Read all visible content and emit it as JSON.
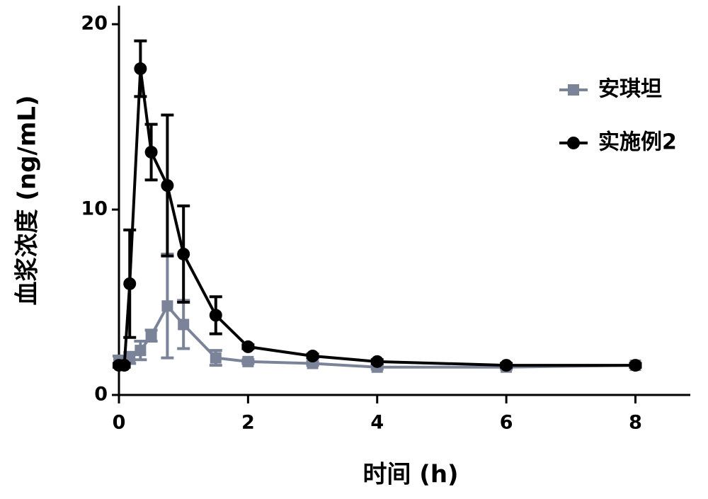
{
  "chart_data": {
    "type": "line",
    "x_label": "时间 (h)",
    "y_label": "血浆浓度 (ng/mL)",
    "x": [
      0,
      0.083,
      0.167,
      0.333,
      0.5,
      0.75,
      1,
      1.5,
      2,
      3,
      4,
      6,
      8
    ],
    "series": [
      {
        "name": "安琪坦",
        "color": "#7a8397",
        "marker": "square",
        "values": [
          1.8,
          1.8,
          2.0,
          2.4,
          3.2,
          4.8,
          3.8,
          2.0,
          1.8,
          1.7,
          1.5,
          1.5,
          1.6
        ],
        "errors": [
          0.3,
          0.2,
          0.3,
          0.5,
          0.3,
          2.8,
          1.3,
          0.4,
          0.1,
          0.1,
          0.1,
          0.1,
          0.1
        ]
      },
      {
        "name": "实施例2",
        "color": "#000000",
        "marker": "circle",
        "values": [
          1.6,
          1.6,
          6.0,
          17.6,
          13.1,
          11.3,
          7.6,
          4.3,
          2.6,
          2.1,
          1.8,
          1.6,
          1.6
        ],
        "errors": [
          0.1,
          0.1,
          2.9,
          1.5,
          1.5,
          3.8,
          2.6,
          1.0,
          0.1,
          0.1,
          0.1,
          0.1,
          0.1
        ]
      }
    ],
    "xlim": [
      0,
      8.85
    ],
    "xticks": [
      0,
      2,
      4,
      6,
      8
    ],
    "ylim": [
      0,
      21
    ],
    "yticks": [
      0,
      10,
      20
    ],
    "legend": "top-right"
  }
}
